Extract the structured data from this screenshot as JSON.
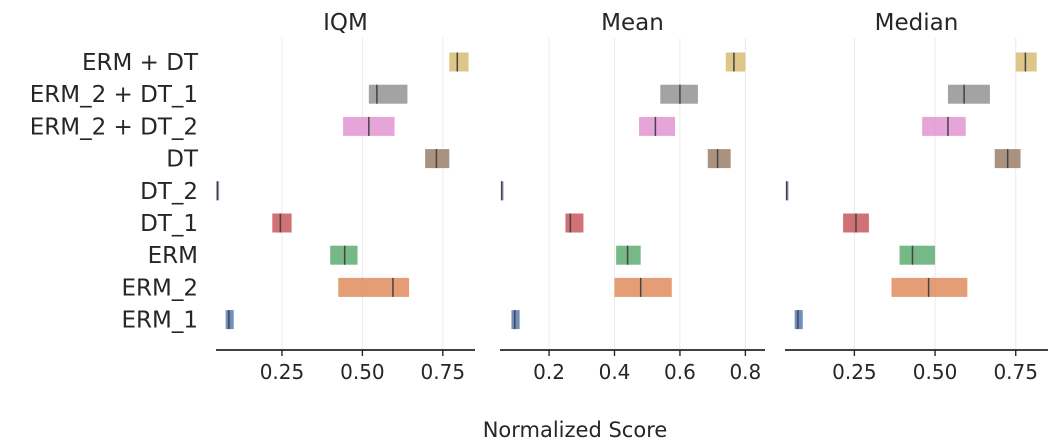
{
  "chart_data": {
    "type": "interval",
    "xlabel": "Normalized Score",
    "algorithms": [
      "ERM + DT",
      "ERM_2 + DT_1",
      "ERM_2 + DT_2",
      "DT",
      "DT_2",
      "DT_1",
      "ERM",
      "ERM_2",
      "ERM_1"
    ],
    "colors": {
      "ERM + DT": "#d4b86a",
      "ERM_2 + DT_1": "#8c8c8c",
      "ERM_2 + DT_2": "#e08ecf",
      "DT": "#937860",
      "DT_2": "#8172b3",
      "DT_1": "#c44e52",
      "ERM": "#55a868",
      "ERM_2": "#dd8452",
      "ERM_1": "#4c72b0"
    },
    "panels": [
      {
        "title": "IQM",
        "xlim": [
          0.045,
          0.85
        ],
        "ticks": [
          0.25,
          0.5,
          0.75
        ],
        "tick_labels": [
          "0.25",
          "0.50",
          "0.75"
        ],
        "intervals": {
          "ERM + DT": {
            "low": 0.77,
            "point": 0.795,
            "high": 0.83
          },
          "ERM_2 + DT_1": {
            "low": 0.52,
            "point": 0.545,
            "high": 0.64
          },
          "ERM_2 + DT_2": {
            "low": 0.44,
            "point": 0.52,
            "high": 0.6
          },
          "DT": {
            "low": 0.695,
            "point": 0.73,
            "high": 0.77
          },
          "DT_2": {
            "low": 0.047,
            "point": 0.049,
            "high": 0.052
          },
          "DT_1": {
            "low": 0.22,
            "point": 0.245,
            "high": 0.28
          },
          "ERM": {
            "low": 0.4,
            "point": 0.445,
            "high": 0.485
          },
          "ERM_2": {
            "low": 0.425,
            "point": 0.595,
            "high": 0.645
          },
          "ERM_1": {
            "low": 0.075,
            "point": 0.085,
            "high": 0.1
          }
        }
      },
      {
        "title": "Mean",
        "xlim": [
          0.05,
          0.86
        ],
        "ticks": [
          0.2,
          0.4,
          0.6,
          0.8
        ],
        "tick_labels": [
          "0.2",
          "0.4",
          "0.6",
          "0.8"
        ],
        "intervals": {
          "ERM + DT": {
            "low": 0.74,
            "point": 0.765,
            "high": 0.8
          },
          "ERM_2 + DT_1": {
            "low": 0.54,
            "point": 0.6,
            "high": 0.655
          },
          "ERM_2 + DT_2": {
            "low": 0.475,
            "point": 0.525,
            "high": 0.585
          },
          "DT": {
            "low": 0.685,
            "point": 0.715,
            "high": 0.755
          },
          "DT_2": {
            "low": 0.053,
            "point": 0.055,
            "high": 0.058
          },
          "DT_1": {
            "low": 0.25,
            "point": 0.265,
            "high": 0.305
          },
          "ERM": {
            "low": 0.405,
            "point": 0.44,
            "high": 0.48
          },
          "ERM_2": {
            "low": 0.4,
            "point": 0.48,
            "high": 0.575
          },
          "ERM_1": {
            "low": 0.085,
            "point": 0.095,
            "high": 0.11
          }
        }
      },
      {
        "title": "Median",
        "xlim": [
          0.035,
          0.85
        ],
        "ticks": [
          0.25,
          0.5,
          0.75
        ],
        "tick_labels": [
          "0.25",
          "0.50",
          "0.75"
        ],
        "intervals": {
          "ERM + DT": {
            "low": 0.75,
            "point": 0.78,
            "high": 0.815
          },
          "ERM_2 + DT_1": {
            "low": 0.54,
            "point": 0.59,
            "high": 0.67
          },
          "ERM_2 + DT_2": {
            "low": 0.46,
            "point": 0.54,
            "high": 0.595
          },
          "DT": {
            "low": 0.685,
            "point": 0.725,
            "high": 0.765
          },
          "DT_2": {
            "low": 0.038,
            "point": 0.04,
            "high": 0.043
          },
          "DT_1": {
            "low": 0.215,
            "point": 0.255,
            "high": 0.295
          },
          "ERM": {
            "low": 0.39,
            "point": 0.43,
            "high": 0.5
          },
          "ERM_2": {
            "low": 0.365,
            "point": 0.48,
            "high": 0.6
          },
          "ERM_1": {
            "low": 0.065,
            "point": 0.075,
            "high": 0.09
          }
        }
      }
    ]
  }
}
